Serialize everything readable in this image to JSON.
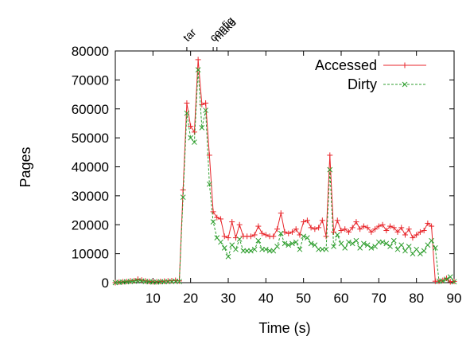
{
  "chart_data": {
    "type": "line",
    "xlabel": "Time (s)",
    "ylabel": "Pages",
    "xlim": [
      0,
      90
    ],
    "ylim": [
      0,
      80000
    ],
    "x_ticks": [
      10,
      20,
      30,
      40,
      50,
      60,
      70,
      80,
      90
    ],
    "y_ticks": [
      0,
      10000,
      20000,
      30000,
      40000,
      50000,
      60000,
      70000,
      80000
    ],
    "y_tick_labels": [
      "0",
      "10000",
      "20000",
      "30000",
      "40000",
      "50000",
      "60000",
      "70000",
      "80000"
    ],
    "legend_position": "top-right",
    "events": [
      {
        "label": "tar",
        "x": 19
      },
      {
        "label": "config",
        "x": 26
      },
      {
        "label": "make",
        "x": 27
      }
    ],
    "series": [
      {
        "name": "Accessed",
        "color": "#e8262b",
        "marker": "plus",
        "x": [
          0,
          1,
          2,
          3,
          4,
          5,
          6,
          7,
          8,
          9,
          10,
          11,
          12,
          13,
          14,
          15,
          16,
          17,
          18,
          19,
          20,
          21,
          22,
          23,
          24,
          25,
          26,
          27,
          28,
          29,
          30,
          31,
          32,
          33,
          34,
          35,
          36,
          37,
          38,
          39,
          40,
          41,
          42,
          43,
          44,
          45,
          46,
          47,
          48,
          49,
          50,
          51,
          52,
          53,
          54,
          55,
          56,
          57,
          58,
          59,
          60,
          61,
          62,
          63,
          64,
          65,
          66,
          67,
          68,
          69,
          70,
          71,
          72,
          73,
          74,
          75,
          76,
          77,
          78,
          79,
          80,
          81,
          82,
          83,
          84,
          85,
          86,
          87,
          88,
          89,
          90
        ],
        "values": [
          0,
          200,
          300,
          400,
          600,
          700,
          1200,
          900,
          600,
          400,
          300,
          300,
          400,
          500,
          600,
          700,
          800,
          600,
          32000,
          62000,
          54000,
          52000,
          77000,
          61500,
          62000,
          44000,
          24500,
          22500,
          22000,
          16000,
          15500,
          21000,
          15500,
          20000,
          16000,
          16000,
          16000,
          16500,
          19500,
          17000,
          16500,
          16000,
          16000,
          18500,
          24000,
          17500,
          17000,
          17500,
          18500,
          16500,
          21000,
          21500,
          19000,
          18500,
          19000,
          21500,
          16000,
          44000,
          17500,
          21500,
          18000,
          18500,
          17500,
          19000,
          21000,
          18500,
          19500,
          19000,
          17500,
          18500,
          19500,
          20000,
          18000,
          19500,
          19000,
          17500,
          19000,
          16500,
          18500,
          15500,
          16500,
          17500,
          18000,
          20500,
          19500,
          500,
          500,
          800,
          1500,
          300,
          400
        ]
      },
      {
        "name": "Dirty",
        "color": "#2e9e2e",
        "marker": "x",
        "x": [
          0,
          1,
          2,
          3,
          4,
          5,
          6,
          7,
          8,
          9,
          10,
          11,
          12,
          13,
          14,
          15,
          16,
          17,
          18,
          19,
          20,
          21,
          22,
          23,
          24,
          25,
          26,
          27,
          28,
          29,
          30,
          31,
          32,
          33,
          34,
          35,
          36,
          37,
          38,
          39,
          40,
          41,
          42,
          43,
          44,
          45,
          46,
          47,
          48,
          49,
          50,
          51,
          52,
          53,
          54,
          55,
          56,
          57,
          58,
          59,
          60,
          61,
          62,
          63,
          64,
          65,
          66,
          67,
          68,
          69,
          70,
          71,
          72,
          73,
          74,
          75,
          76,
          77,
          78,
          79,
          80,
          81,
          82,
          83,
          84,
          85,
          86,
          87,
          88,
          89,
          90
        ],
        "values": [
          0,
          100,
          200,
          300,
          400,
          500,
          700,
          600,
          400,
          300,
          200,
          200,
          300,
          300,
          400,
          400,
          500,
          400,
          29500,
          58500,
          50000,
          48500,
          73500,
          53500,
          59500,
          34000,
          21000,
          15500,
          14000,
          12000,
          9000,
          13000,
          11500,
          15000,
          11000,
          11000,
          11000,
          11500,
          14500,
          11500,
          11500,
          11000,
          11000,
          12500,
          17000,
          13500,
          13000,
          13500,
          14000,
          11500,
          16000,
          15500,
          13500,
          13000,
          11500,
          11500,
          11500,
          39000,
          12500,
          16500,
          13500,
          12000,
          14000,
          13500,
          14500,
          12000,
          13500,
          13000,
          12000,
          12500,
          14000,
          14000,
          13500,
          12500,
          14500,
          11500,
          13000,
          11000,
          12500,
          10000,
          11500,
          10000,
          11000,
          13000,
          14500,
          12000,
          500,
          600,
          1200,
          2000,
          300
        ]
      }
    ]
  }
}
